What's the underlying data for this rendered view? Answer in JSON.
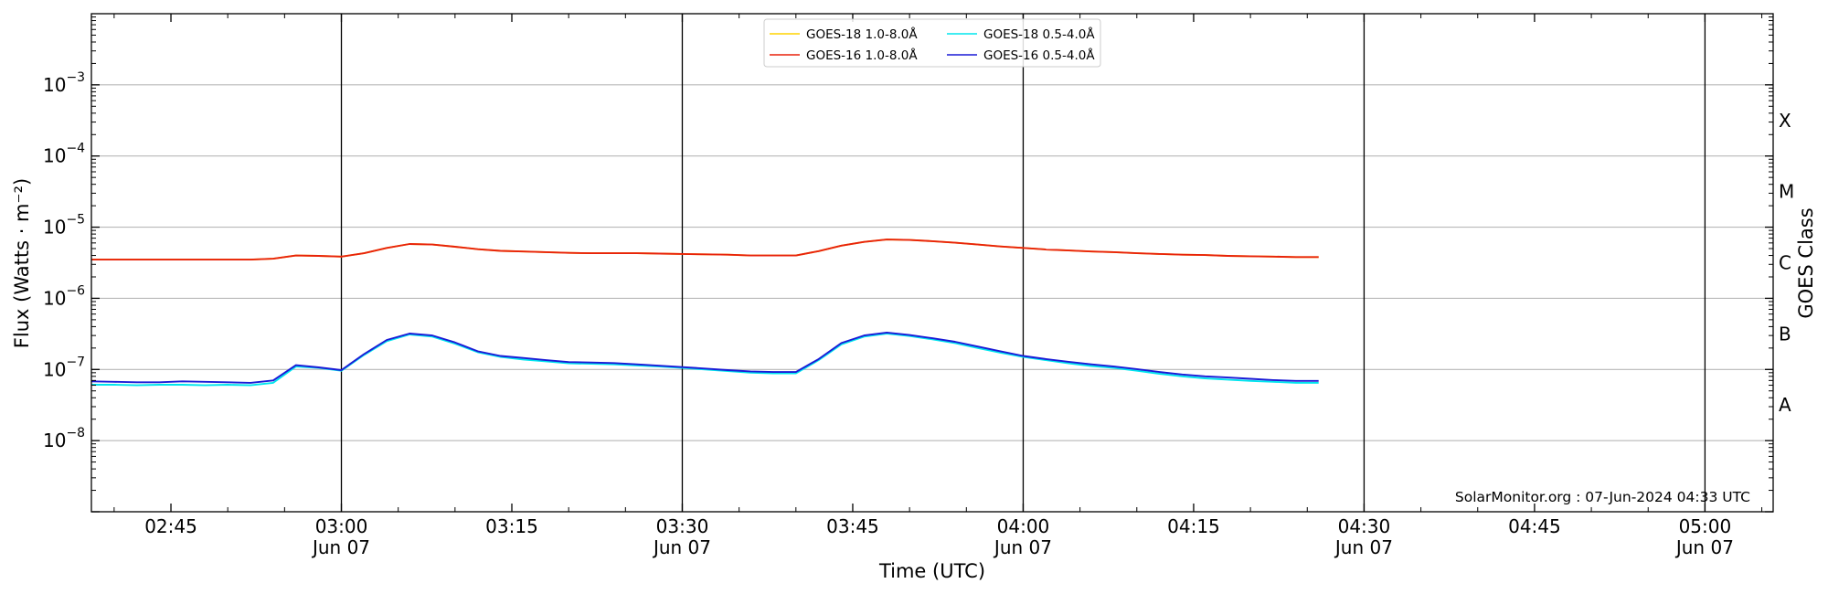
{
  "chart_data": {
    "type": "line",
    "title": "",
    "xlabel": "Time (UTC)",
    "ylabel": "Flux (Watts · m⁻²)",
    "ylabel_right": "GOES Class",
    "y_scale": "log",
    "ylim": [
      1e-09,
      0.01
    ],
    "x_range": [
      "02:38",
      "06/07 05:06"
    ],
    "grid": "horizontal at each decade",
    "legend_position": "top-center",
    "legend_columns": 2,
    "x_ticks": [
      {
        "time": "02:45",
        "line1": "02:45",
        "line2": ""
      },
      {
        "time": "03:00",
        "line1": "03:00",
        "line2": "Jun 07"
      },
      {
        "time": "03:15",
        "line1": "03:15",
        "line2": ""
      },
      {
        "time": "03:30",
        "line1": "03:30",
        "line2": "Jun 07"
      },
      {
        "time": "03:45",
        "line1": "03:45",
        "line2": ""
      },
      {
        "time": "04:00",
        "line1": "04:00",
        "line2": "Jun 07"
      },
      {
        "time": "04:15",
        "line1": "04:15",
        "line2": ""
      },
      {
        "time": "04:30",
        "line1": "04:30",
        "line2": "Jun 07"
      },
      {
        "time": "04:45",
        "line1": "04:45",
        "line2": ""
      },
      {
        "time": "05:00",
        "line1": "05:00",
        "line2": "Jun 07"
      }
    ],
    "y_ticks": [
      {
        "exp": -3,
        "base": "10",
        "sup": "−3"
      },
      {
        "exp": -4,
        "base": "10",
        "sup": "−4"
      },
      {
        "exp": -5,
        "base": "10",
        "sup": "−5"
      },
      {
        "exp": -6,
        "base": "10",
        "sup": "−6"
      },
      {
        "exp": -7,
        "base": "10",
        "sup": "−7"
      },
      {
        "exp": -8,
        "base": "10",
        "sup": "−8"
      }
    ],
    "vertical_lines": [
      "03:00",
      "03:30",
      "04:00",
      "04:30",
      "05:00"
    ],
    "goes_classes": [
      {
        "label": "X",
        "center_exp": -3.5
      },
      {
        "label": "M",
        "center_exp": -4.5
      },
      {
        "label": "C",
        "center_exp": -5.5
      },
      {
        "label": "B",
        "center_exp": -6.5
      },
      {
        "label": "A",
        "center_exp": -7.5
      }
    ],
    "x": [
      "02:38",
      "02:40",
      "02:42",
      "02:44",
      "02:46",
      "02:48",
      "02:50",
      "02:52",
      "02:54",
      "02:56",
      "02:58",
      "03:00",
      "03:02",
      "03:04",
      "03:06",
      "03:08",
      "03:10",
      "03:12",
      "03:14",
      "03:16",
      "03:18",
      "03:20",
      "03:22",
      "03:24",
      "03:26",
      "03:28",
      "03:30",
      "03:32",
      "03:34",
      "03:36",
      "03:38",
      "03:40",
      "03:42",
      "03:44",
      "03:46",
      "03:48",
      "03:50",
      "03:52",
      "03:54",
      "03:56",
      "03:58",
      "04:00",
      "04:02",
      "04:04",
      "04:06",
      "04:08",
      "04:10",
      "04:12",
      "04:14",
      "04:16",
      "04:18",
      "04:20",
      "04:22",
      "04:24",
      "04:26"
    ],
    "series": [
      {
        "name": "GOES-18 1.0-8.0Å",
        "color": "#ffd400",
        "values": [
          3.5e-06,
          3.5e-06,
          3.5e-06,
          3.5e-06,
          3.5e-06,
          3.5e-06,
          3.5e-06,
          3.5e-06,
          3.6e-06,
          4e-06,
          3.95e-06,
          3.85e-06,
          4.3e-06,
          5.1e-06,
          5.8e-06,
          5.7e-06,
          5.3e-06,
          4.9e-06,
          4.65e-06,
          4.55e-06,
          4.45e-06,
          4.35e-06,
          4.3e-06,
          4.3e-06,
          4.3e-06,
          4.25e-06,
          4.2e-06,
          4.15e-06,
          4.1e-06,
          4e-06,
          4e-06,
          4e-06,
          4.6e-06,
          5.5e-06,
          6.2e-06,
          6.7e-06,
          6.6e-06,
          6.35e-06,
          6.05e-06,
          5.7e-06,
          5.35e-06,
          5.1e-06,
          4.85e-06,
          4.7e-06,
          4.55e-06,
          4.45e-06,
          4.3e-06,
          4.2e-06,
          4.1e-06,
          4.05e-06,
          3.95e-06,
          3.9e-06,
          3.85e-06,
          3.8e-06,
          3.8e-06
        ]
      },
      {
        "name": "GOES-18 0.5-4.0Å",
        "color": "#00e5ee",
        "values": [
          6.1e-08,
          6.1e-08,
          6e-08,
          6.1e-08,
          6.1e-08,
          6e-08,
          6.1e-08,
          6e-08,
          6.5e-08,
          1.1e-07,
          1.05e-07,
          9.6e-08,
          1.6e-07,
          2.5e-07,
          3.1e-07,
          2.9e-07,
          2.3e-07,
          1.75e-07,
          1.5e-07,
          1.38e-07,
          1.3e-07,
          1.22e-07,
          1.2e-07,
          1.18e-07,
          1.14e-07,
          1.1e-07,
          1.05e-07,
          1e-07,
          9.5e-08,
          9e-08,
          8.8e-08,
          8.8e-08,
          1.35e-07,
          2.25e-07,
          2.9e-07,
          3.2e-07,
          2.95e-07,
          2.65e-07,
          2.35e-07,
          2e-07,
          1.72e-07,
          1.5e-07,
          1.35e-07,
          1.22e-07,
          1.12e-07,
          1.05e-07,
          9.6e-08,
          8.7e-08,
          8e-08,
          7.5e-08,
          7.2e-08,
          6.9e-08,
          6.7e-08,
          6.5e-08,
          6.5e-08
        ]
      },
      {
        "name": "GOES-16 1.0-8.0Å",
        "color": "#e8220c",
        "values": [
          3.5e-06,
          3.5e-06,
          3.5e-06,
          3.5e-06,
          3.5e-06,
          3.5e-06,
          3.5e-06,
          3.5e-06,
          3.6e-06,
          4e-06,
          3.95e-06,
          3.85e-06,
          4.3e-06,
          5.1e-06,
          5.8e-06,
          5.7e-06,
          5.3e-06,
          4.9e-06,
          4.65e-06,
          4.55e-06,
          4.45e-06,
          4.35e-06,
          4.3e-06,
          4.3e-06,
          4.3e-06,
          4.25e-06,
          4.2e-06,
          4.15e-06,
          4.1e-06,
          4e-06,
          4e-06,
          4e-06,
          4.6e-06,
          5.5e-06,
          6.2e-06,
          6.7e-06,
          6.6e-06,
          6.35e-06,
          6.05e-06,
          5.7e-06,
          5.35e-06,
          5.1e-06,
          4.85e-06,
          4.7e-06,
          4.55e-06,
          4.45e-06,
          4.3e-06,
          4.2e-06,
          4.1e-06,
          4.05e-06,
          3.95e-06,
          3.9e-06,
          3.85e-06,
          3.8e-06,
          3.8e-06
        ]
      },
      {
        "name": "GOES-16 0.5-4.0Å",
        "color": "#1a1ad6",
        "values": [
          6.8e-08,
          6.7e-08,
          6.6e-08,
          6.6e-08,
          6.8e-08,
          6.7e-08,
          6.6e-08,
          6.5e-08,
          7e-08,
          1.15e-07,
          1.07e-07,
          9.8e-08,
          1.65e-07,
          2.6e-07,
          3.2e-07,
          3e-07,
          2.4e-07,
          1.8e-07,
          1.55e-07,
          1.45e-07,
          1.35e-07,
          1.27e-07,
          1.25e-07,
          1.23e-07,
          1.18e-07,
          1.13e-07,
          1.08e-07,
          1.03e-07,
          9.8e-08,
          9.4e-08,
          9.2e-08,
          9.2e-08,
          1.4e-07,
          2.35e-07,
          3e-07,
          3.3e-07,
          3.05e-07,
          2.75e-07,
          2.45e-07,
          2.1e-07,
          1.8e-07,
          1.55e-07,
          1.4e-07,
          1.28e-07,
          1.18e-07,
          1.1e-07,
          1.01e-07,
          9.2e-08,
          8.5e-08,
          8e-08,
          7.7e-08,
          7.4e-08,
          7.1e-08,
          6.9e-08,
          6.9e-08
        ]
      }
    ],
    "annotation": "SolarMonitor.org : 07-Jun-2024 04:33 UTC"
  }
}
